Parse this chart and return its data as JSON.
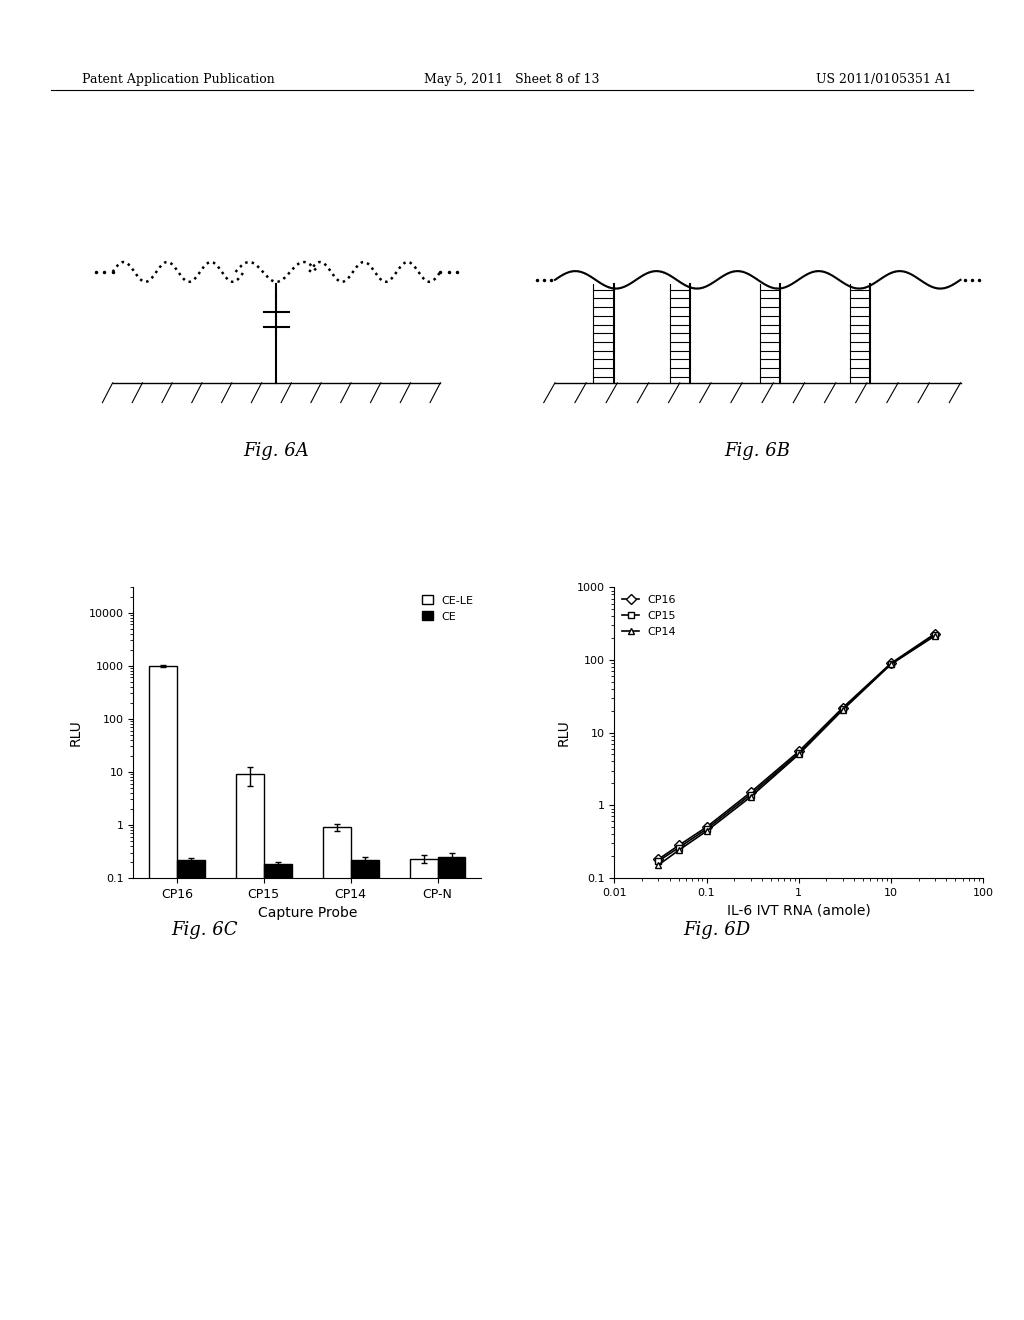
{
  "header_left": "Patent Application Publication",
  "header_mid": "May 5, 2011   Sheet 8 of 13",
  "header_right": "US 2011/0105351 A1",
  "fig6A_label": "Fig. 6A",
  "fig6B_label": "Fig. 6B",
  "fig6C_label": "Fig. 6C",
  "fig6D_label": "Fig. 6D",
  "fig6C_categories": [
    "CP16",
    "CP15",
    "CP14",
    "CP-N"
  ],
  "fig6C_CE_LE": [
    1000,
    9.0,
    0.9,
    0.23
  ],
  "fig6C_CE_LE_err": [
    50,
    3.5,
    0.12,
    0.04
  ],
  "fig6C_CE": [
    0.22,
    0.18,
    0.22,
    0.25
  ],
  "fig6C_CE_err": [
    0.02,
    0.02,
    0.03,
    0.04
  ],
  "fig6C_ylabel": "RLU",
  "fig6C_xlabel": "Capture Probe",
  "fig6C_legend_CE_LE": "CE-LE",
  "fig6C_legend_CE": "CE",
  "fig6D_x": [
    0.03,
    0.05,
    0.1,
    0.3,
    1.0,
    3.0,
    10.0,
    30.0
  ],
  "fig6D_CP16": [
    0.18,
    0.28,
    0.5,
    1.5,
    5.5,
    22.0,
    90.0,
    230.0
  ],
  "fig6D_CP15": [
    0.17,
    0.26,
    0.47,
    1.4,
    5.2,
    21.0,
    88.0,
    220.0
  ],
  "fig6D_CP14": [
    0.15,
    0.24,
    0.44,
    1.3,
    5.0,
    20.5,
    87.0,
    215.0
  ],
  "fig6D_ylabel": "RLU",
  "fig6D_xlabel": "IL-6 IVT RNA (amole)",
  "fig6D_legend_CP16": "CP16",
  "fig6D_legend_CP15": "CP15",
  "fig6D_legend_CP14": "CP14",
  "background_color": "#ffffff",
  "text_color": "#000000"
}
